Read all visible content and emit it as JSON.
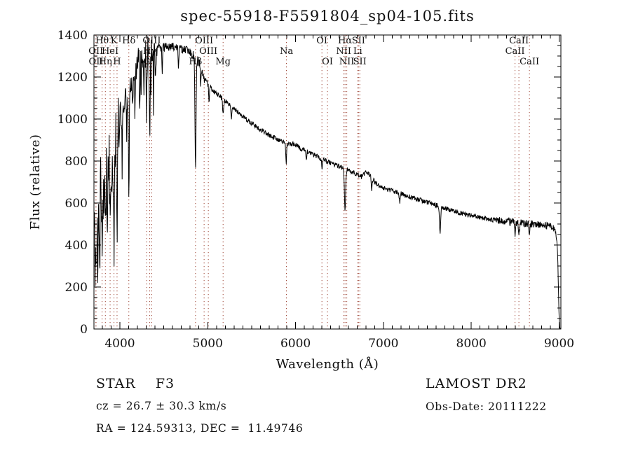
{
  "chart_data": {
    "type": "line",
    "title": "spec-55918-F5591804_sp04-105.fits",
    "xlabel": "Wavelength (Å)",
    "ylabel": "Flux (relative)",
    "xlim": [
      3705,
      9020
    ],
    "ylim": [
      0,
      1400
    ],
    "x_ticks": [
      4000,
      5000,
      6000,
      7000,
      8000,
      9000
    ],
    "y_ticks": [
      0,
      200,
      400,
      600,
      800,
      1000,
      1200,
      1400
    ],
    "x_minor_step": 100,
    "y_minor_step": 50,
    "grid": false,
    "background_color": "#ffffff",
    "line_color": "#000000",
    "marker_line_color": "#9a3c2c",
    "label_color": "#1d1d1d",
    "spectral_lines": [
      {
        "wl": 3727,
        "label": "OII",
        "row": 2
      },
      {
        "wl": 3729,
        "label": "OII",
        "row": 3
      },
      {
        "wl": 3798,
        "label": "Hθ",
        "row": 1
      },
      {
        "wl": 3835,
        "label": "Hη",
        "row": 3
      },
      {
        "wl": 3889,
        "label": "HeI",
        "row": 2
      },
      {
        "wl": 3933,
        "label": "K",
        "row": 1
      },
      {
        "wl": 3968,
        "label": "H",
        "row": 3
      },
      {
        "wl": 4102,
        "label": "Hδ",
        "row": 1
      },
      {
        "wl": 4305,
        "label": "G",
        "row": 3
      },
      {
        "wl": 4340,
        "label": "Hγ",
        "row": 2
      },
      {
        "wl": 4363,
        "label": "OIII",
        "row": 1
      },
      {
        "wl": 4861,
        "label": "Hβ",
        "row": 3
      },
      {
        "wl": 4959,
        "label": "OIII",
        "row": 1
      },
      {
        "wl": 5007,
        "label": "OIII",
        "row": 2
      },
      {
        "wl": 5175,
        "label": "Mg",
        "row": 3
      },
      {
        "wl": 5896,
        "label": "Na",
        "row": 2
      },
      {
        "wl": 6300,
        "label": "OI",
        "row": 1
      },
      {
        "wl": 6363,
        "label": "OI",
        "row": 3
      },
      {
        "wl": 6548,
        "label": "NII",
        "row": 2
      },
      {
        "wl": 6563,
        "label": "Hα",
        "row": 1
      },
      {
        "wl": 6583,
        "label": "NII",
        "row": 3
      },
      {
        "wl": 6708,
        "label": "Li",
        "row": 2
      },
      {
        "wl": 6716,
        "label": "SII",
        "row": 1
      },
      {
        "wl": 6731,
        "label": "SII",
        "row": 3
      },
      {
        "wl": 8498,
        "label": "CaII",
        "row": 2
      },
      {
        "wl": 8542,
        "label": "CaII",
        "row": 1
      },
      {
        "wl": 8662,
        "label": "CaII",
        "row": 3
      }
    ],
    "continuum": [
      [
        3706,
        560
      ],
      [
        3715,
        575
      ],
      [
        3725,
        590
      ],
      [
        3740,
        615
      ],
      [
        3755,
        640
      ],
      [
        3770,
        660
      ],
      [
        3785,
        678
      ],
      [
        3800,
        695
      ],
      [
        3815,
        720
      ],
      [
        3830,
        748
      ],
      [
        3845,
        772
      ],
      [
        3860,
        798
      ],
      [
        3875,
        822
      ],
      [
        3890,
        848
      ],
      [
        3905,
        872
      ],
      [
        3920,
        896
      ],
      [
        3935,
        918
      ],
      [
        3950,
        940
      ],
      [
        3965,
        960
      ],
      [
        3980,
        982
      ],
      [
        4000,
        1010
      ],
      [
        4020,
        1040
      ],
      [
        4040,
        1068
      ],
      [
        4060,
        1095
      ],
      [
        4080,
        1122
      ],
      [
        4100,
        1148
      ],
      [
        4120,
        1172
      ],
      [
        4140,
        1196
      ],
      [
        4160,
        1218
      ],
      [
        4180,
        1240
      ],
      [
        4200,
        1260
      ],
      [
        4225,
        1280
      ],
      [
        4250,
        1298
      ],
      [
        4275,
        1310
      ],
      [
        4300,
        1320
      ],
      [
        4330,
        1328
      ],
      [
        4360,
        1333
      ],
      [
        4400,
        1337
      ],
      [
        4450,
        1340
      ],
      [
        4500,
        1342
      ],
      [
        4550,
        1343
      ],
      [
        4600,
        1343
      ],
      [
        4650,
        1340
      ],
      [
        4700,
        1335
      ],
      [
        4750,
        1328
      ],
      [
        4800,
        1315
      ],
      [
        4850,
        1298
      ],
      [
        4900,
        1272
      ],
      [
        4950,
        1200
      ],
      [
        5000,
        1165
      ],
      [
        5050,
        1140
      ],
      [
        5100,
        1120
      ],
      [
        5150,
        1102
      ],
      [
        5200,
        1085
      ],
      [
        5250,
        1066
      ],
      [
        5300,
        1048
      ],
      [
        5350,
        1030
      ],
      [
        5400,
        1013
      ],
      [
        5450,
        996
      ],
      [
        5500,
        980
      ],
      [
        5550,
        965
      ],
      [
        5600,
        950
      ],
      [
        5650,
        936
      ],
      [
        5700,
        923
      ],
      [
        5750,
        911
      ],
      [
        5800,
        898
      ],
      [
        5850,
        890
      ],
      [
        5900,
        884
      ],
      [
        5950,
        881
      ],
      [
        6000,
        878
      ],
      [
        6050,
        862
      ],
      [
        6100,
        852
      ],
      [
        6150,
        840
      ],
      [
        6200,
        830
      ],
      [
        6250,
        820
      ],
      [
        6300,
        810
      ],
      [
        6350,
        800
      ],
      [
        6400,
        790
      ],
      [
        6450,
        782
      ],
      [
        6500,
        774
      ],
      [
        6550,
        766
      ],
      [
        6600,
        756
      ],
      [
        6650,
        746
      ],
      [
        6700,
        736
      ],
      [
        6750,
        726
      ],
      [
        6800,
        744
      ],
      [
        6850,
        732
      ],
      [
        6900,
        700
      ],
      [
        6950,
        686
      ],
      [
        7000,
        673
      ],
      [
        7050,
        666
      ],
      [
        7100,
        659
      ],
      [
        7150,
        652
      ],
      [
        7200,
        645
      ],
      [
        7250,
        638
      ],
      [
        7300,
        631
      ],
      [
        7350,
        625
      ],
      [
        7400,
        618
      ],
      [
        7450,
        611
      ],
      [
        7500,
        604
      ],
      [
        7550,
        597
      ],
      [
        7600,
        590
      ],
      [
        7650,
        583
      ],
      [
        7700,
        576
      ],
      [
        7750,
        569
      ],
      [
        7800,
        562
      ],
      [
        7850,
        556
      ],
      [
        7900,
        550
      ],
      [
        7950,
        545
      ],
      [
        8000,
        540
      ],
      [
        8060,
        534
      ],
      [
        8120,
        529
      ],
      [
        8180,
        524
      ],
      [
        8240,
        520
      ],
      [
        8300,
        516
      ],
      [
        8360,
        513
      ],
      [
        8420,
        510
      ],
      [
        8480,
        507
      ],
      [
        8540,
        505
      ],
      [
        8600,
        503
      ],
      [
        8660,
        501
      ],
      [
        8720,
        499
      ],
      [
        8780,
        497
      ],
      [
        8840,
        494
      ],
      [
        8890,
        490
      ],
      [
        8930,
        482
      ],
      [
        8955,
        468
      ],
      [
        8972,
        440
      ],
      [
        8984,
        350
      ],
      [
        8992,
        200
      ],
      [
        8999,
        70
      ],
      [
        9004,
        18
      ],
      [
        9010,
        7
      ],
      [
        9016,
        5
      ]
    ],
    "absorption_lines": [
      [
        3722,
        300,
        5
      ],
      [
        3734,
        260,
        4
      ],
      [
        3750,
        380,
        5
      ],
      [
        3771,
        320,
        4
      ],
      [
        3798,
        330,
        5
      ],
      [
        3820,
        250,
        4
      ],
      [
        3835,
        360,
        5
      ],
      [
        3856,
        220,
        4
      ],
      [
        3889,
        400,
        5
      ],
      [
        3905,
        200,
        4
      ],
      [
        3933,
        560,
        6
      ],
      [
        3968,
        520,
        6
      ],
      [
        4026,
        260,
        4
      ],
      [
        4078,
        180,
        4
      ],
      [
        4102,
        450,
        6
      ],
      [
        4144,
        200,
        4
      ],
      [
        4173,
        220,
        4
      ],
      [
        4227,
        240,
        4
      ],
      [
        4271,
        180,
        4
      ],
      [
        4305,
        190,
        5
      ],
      [
        4340,
        440,
        6
      ],
      [
        4383,
        170,
        4
      ],
      [
        4405,
        150,
        4
      ],
      [
        4481,
        120,
        4
      ],
      [
        4668,
        100,
        4
      ],
      [
        4861,
        530,
        6
      ],
      [
        4920,
        90,
        4
      ],
      [
        5015,
        80,
        4
      ],
      [
        5175,
        70,
        6
      ],
      [
        5270,
        60,
        5
      ],
      [
        5893,
        95,
        5
      ],
      [
        6122,
        50,
        4
      ],
      [
        6300,
        45,
        4
      ],
      [
        6563,
        190,
        7
      ],
      [
        6867,
        60,
        5
      ],
      [
        7186,
        50,
        5
      ],
      [
        7645,
        130,
        6
      ],
      [
        8498,
        50,
        5
      ],
      [
        8542,
        70,
        5
      ],
      [
        8662,
        60,
        5
      ]
    ],
    "noise": {
      "seed": 77,
      "deep_blue_amp": 160,
      "blue_amp": 80,
      "green_amp": 20,
      "red_amp": 12,
      "far_red_amp": 18
    },
    "annotations": {
      "class_label": "STAR    F3",
      "cz": "cz = 26.7 ± 30.3 km/s",
      "radec": "RA = 124.59313, DEC =  11.49746",
      "survey": "LAMOST DR2",
      "obsdate": "Obs-Date: 20111222"
    }
  }
}
